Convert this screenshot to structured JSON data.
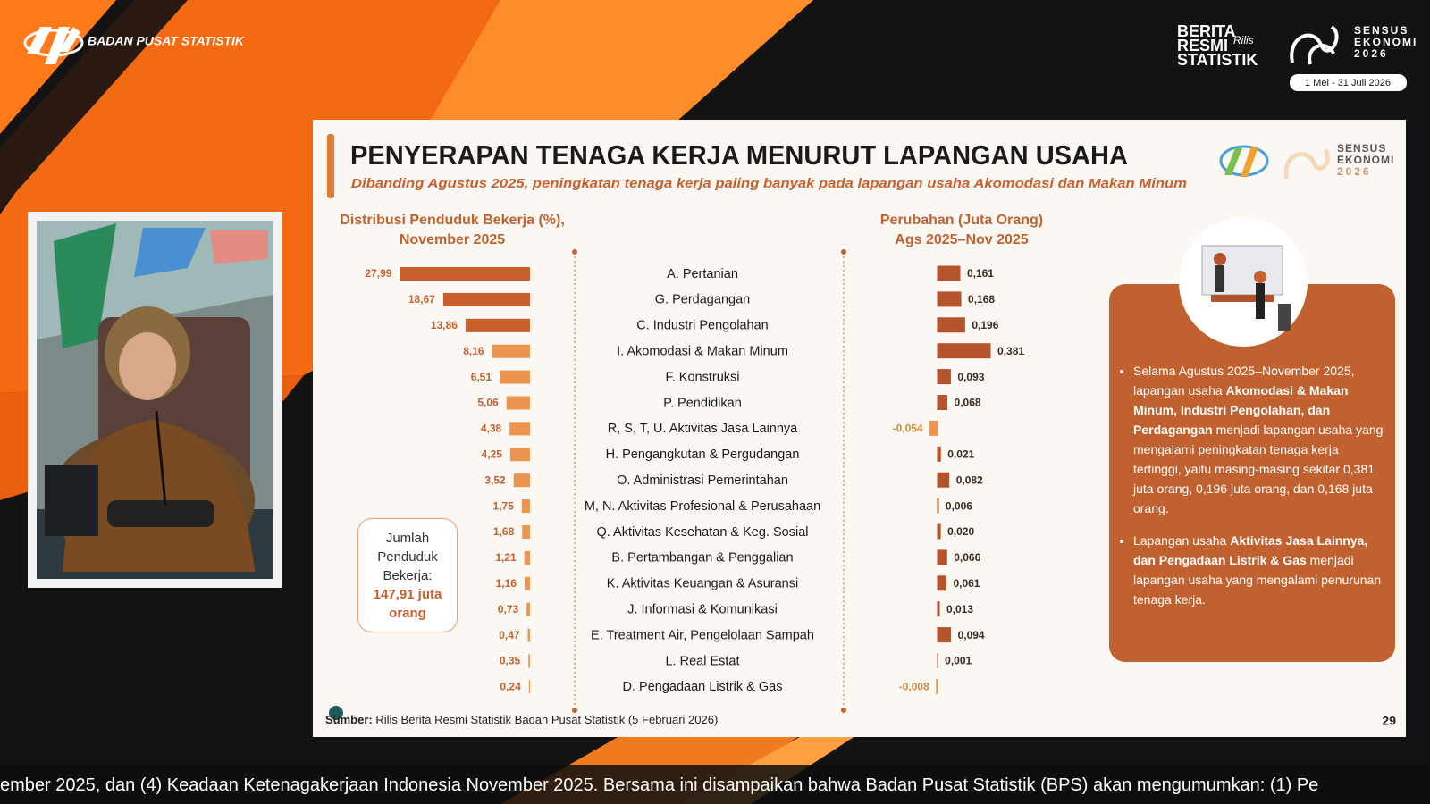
{
  "header": {
    "org": "BADAN PUSAT STATISTIK",
    "brs": [
      "BERITA",
      "RESMI",
      "STATISTIK"
    ],
    "brs_script": "Rilis",
    "sensus": [
      "SENSUS",
      "EKONOMI",
      "2026"
    ],
    "dates": "1 Mei - 31 Juli 2026"
  },
  "slide": {
    "title": "PENYERAPAN TENAGA KERJA MENURUT LAPANGAN USAHA",
    "subtitle": "Dibanding Agustus 2025, peningkatan tenaga kerja paling banyak pada lapangan usaha Akomodasi dan Makan Minum",
    "logo": [
      "SENSUS",
      "EKONOMI",
      "2026"
    ],
    "total_box": {
      "label": "Jumlah Penduduk Bekerja:",
      "value": "147,91 juta orang"
    },
    "bullets": [
      [
        {
          "text": "Selama Agustus 2025–November 2025, lapangan usaha "
        },
        {
          "text": "Akomodasi & Makan Minum, Industri Pengolahan, dan Perdagangan",
          "bold": true
        },
        {
          "text": " menjadi lapangan usaha yang mengalami peningkatan tenaga kerja tertinggi, yaitu masing-masing sekitar 0,381 juta orang, 0,196 juta orang, dan 0,168 juta orang."
        }
      ],
      [
        {
          "text": "Lapangan usaha "
        },
        {
          "text": "Aktivitas Jasa Lainnya, dan Pengadaan Listrik & Gas",
          "bold": true
        },
        {
          "text": " menjadi lapangan usaha yang mengalami penurunan tenaga kerja."
        }
      ]
    ],
    "source": {
      "label": "Sumber:",
      "text": "Rilis Berita Resmi Statistik Badan Pusat Statistik (5 Februari 2026)"
    },
    "page": "29"
  },
  "chart_data": [
    {
      "type": "bar",
      "title": [
        "Distribusi Penduduk Bekerja (%),",
        "November 2025"
      ],
      "categories": [
        "A. Pertanian",
        "G. Perdagangan",
        "C. Industri Pengolahan",
        "I. Akomodasi & Makan Minum",
        "F. Konstruksi",
        "P. Pendidikan",
        "R, S, T, U. Aktivitas Jasa Lainnya",
        "H. Pengangkutan & Pergudangan",
        "O. Administrasi Pemerintahan",
        "M, N. Aktivitas Profesional & Perusahaan",
        "Q. Aktivitas Kesehatan & Keg. Sosial",
        "B. Pertambangan & Penggalian",
        "K. Aktivitas Keuangan & Asuransi",
        "J. Informasi & Komunikasi",
        "E. Treatment Air, Pengelolaan Sampah",
        "L. Real Estat",
        "D. Pengadaan Listrik & Gas"
      ],
      "values": [
        27.99,
        18.67,
        13.86,
        8.16,
        6.51,
        5.06,
        4.38,
        4.25,
        3.52,
        1.75,
        1.68,
        1.21,
        1.16,
        0.73,
        0.47,
        0.35,
        0.24
      ],
      "value_labels": [
        "27,99",
        "18,67",
        "13,86",
        "8,16",
        "6,51",
        "5,06",
        "4,38",
        "4,25",
        "3,52",
        "1,75",
        "1,68",
        "1,21",
        "1,16",
        "0,73",
        "0,47",
        "0,35",
        "0,24"
      ],
      "colors": [
        "#c8602e",
        "#c8602e",
        "#c8602e",
        "#eb9550",
        "#eb9550",
        "#eb9550",
        "#eb9550",
        "#eb9550",
        "#eb9550",
        "#eb9550",
        "#eb9550",
        "#eb9550",
        "#eb9550",
        "#eb9550",
        "#eb9550",
        "#eb9550",
        "#eb9550"
      ]
    },
    {
      "type": "bar",
      "title": [
        "Perubahan (Juta Orang)",
        "Ags 2025–Nov 2025"
      ],
      "values": [
        0.161,
        0.168,
        0.196,
        0.381,
        0.093,
        0.068,
        -0.054,
        0.021,
        0.082,
        0.006,
        0.02,
        0.066,
        0.061,
        0.013,
        0.094,
        0.001,
        -0.008
      ],
      "value_labels": [
        "0,161",
        "0,168",
        "0,196",
        "0,381",
        "0,093",
        "0,068",
        "-0,054",
        "0,021",
        "0,082",
        "0,006",
        "0,020",
        "0,066",
        "0,061",
        "0,013",
        "0,094",
        "0,001",
        "-0,008"
      ],
      "color": "#b5532c",
      "negative_color": "#eb9550"
    }
  ],
  "ticker": "ember 2025, dan (4) Keadaan Ketenagakerjaan Indonesia November 2025. Bersama ini disampaikan bahwa Badan Pusat Statistik (BPS) akan mengumumkan: (1) Pe"
}
